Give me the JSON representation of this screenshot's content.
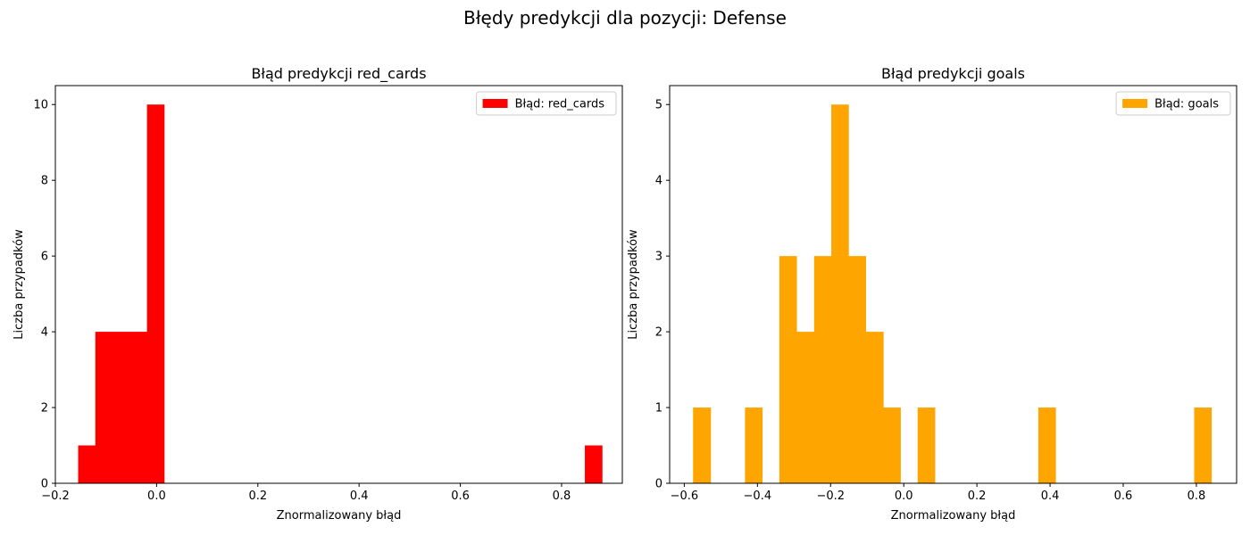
{
  "suptitle": "Błędy predykcji dla pozycji: Defense",
  "chart_data": [
    {
      "type": "bar",
      "title": "Błąd predykcji red_cards",
      "xlabel": "Znormalizowany błąd",
      "ylabel": "Liczba przypadków",
      "xlim": [
        -0.2,
        0.92
      ],
      "ylim": [
        0,
        10.5
      ],
      "xticks": [
        -0.2,
        0.0,
        0.2,
        0.4,
        0.6,
        0.8
      ],
      "xtick_labels": [
        "−0.2",
        "0.0",
        "0.2",
        "0.4",
        "0.6",
        "0.8"
      ],
      "yticks": [
        0,
        2,
        4,
        6,
        8,
        10
      ],
      "ytick_labels": [
        "0",
        "2",
        "4",
        "6",
        "8",
        "10"
      ],
      "color": "#ff0000",
      "legend": "Błąd: red_cards",
      "legend_position": "top-right",
      "grid": false,
      "bins": [
        {
          "x0": -0.155,
          "x1": -0.121,
          "count": 1
        },
        {
          "x0": -0.121,
          "x1": -0.087,
          "count": 4
        },
        {
          "x0": -0.087,
          "x1": -0.053,
          "count": 4
        },
        {
          "x0": -0.053,
          "x1": -0.019,
          "count": 4
        },
        {
          "x0": -0.019,
          "x1": 0.015,
          "count": 10
        },
        {
          "x0": 0.846,
          "x1": 0.88,
          "count": 1
        }
      ]
    },
    {
      "type": "bar",
      "title": "Błąd predykcji goals",
      "xlabel": "Znormalizowany błąd",
      "ylabel": "Liczba przypadków",
      "xlim": [
        -0.64,
        0.91
      ],
      "ylim": [
        0,
        5.25
      ],
      "xticks": [
        -0.6,
        -0.4,
        -0.2,
        0.0,
        0.2,
        0.4,
        0.6,
        0.8
      ],
      "xtick_labels": [
        "−0.6",
        "−0.4",
        "−0.2",
        "0.0",
        "0.2",
        "0.4",
        "0.6",
        "0.8"
      ],
      "yticks": [
        0,
        1,
        2,
        3,
        4,
        5
      ],
      "ytick_labels": [
        "0",
        "1",
        "2",
        "3",
        "4",
        "5"
      ],
      "color": "#ffa500",
      "legend": "Błąd: goals",
      "legend_position": "top-right",
      "grid": false,
      "bins": [
        {
          "x0": -0.576,
          "x1": -0.528,
          "count": 1
        },
        {
          "x0": -0.434,
          "x1": -0.387,
          "count": 1
        },
        {
          "x0": -0.34,
          "x1": -0.293,
          "count": 3
        },
        {
          "x0": -0.293,
          "x1": -0.245,
          "count": 2
        },
        {
          "x0": -0.245,
          "x1": -0.198,
          "count": 3
        },
        {
          "x0": -0.198,
          "x1": -0.151,
          "count": 5
        },
        {
          "x0": -0.151,
          "x1": -0.104,
          "count": 3
        },
        {
          "x0": -0.104,
          "x1": -0.056,
          "count": 2
        },
        {
          "x0": -0.056,
          "x1": -0.009,
          "count": 1
        },
        {
          "x0": 0.038,
          "x1": 0.085,
          "count": 1
        },
        {
          "x0": 0.368,
          "x1": 0.415,
          "count": 1
        },
        {
          "x0": 0.794,
          "x1": 0.841,
          "count": 1
        }
      ]
    }
  ]
}
